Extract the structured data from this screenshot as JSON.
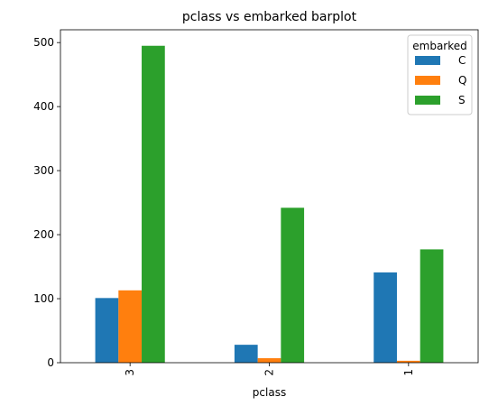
{
  "chart_data": {
    "type": "bar",
    "title": "pclass vs embarked barplot",
    "xlabel": "pclass",
    "ylabel": "",
    "categories": [
      "3",
      "2",
      "1"
    ],
    "series": [
      {
        "name": "C",
        "color": "#1f77b4",
        "values": [
          101,
          28,
          141
        ]
      },
      {
        "name": "Q",
        "color": "#ff7f0e",
        "values": [
          113,
          7,
          3
        ]
      },
      {
        "name": "S",
        "color": "#2ca02c",
        "values": [
          495,
          242,
          177
        ]
      }
    ],
    "ylim": [
      0,
      520
    ],
    "yticks": [
      0,
      100,
      200,
      300,
      400,
      500
    ],
    "legend": {
      "title": "embarked",
      "placement": "upper right"
    },
    "grid": false
  }
}
